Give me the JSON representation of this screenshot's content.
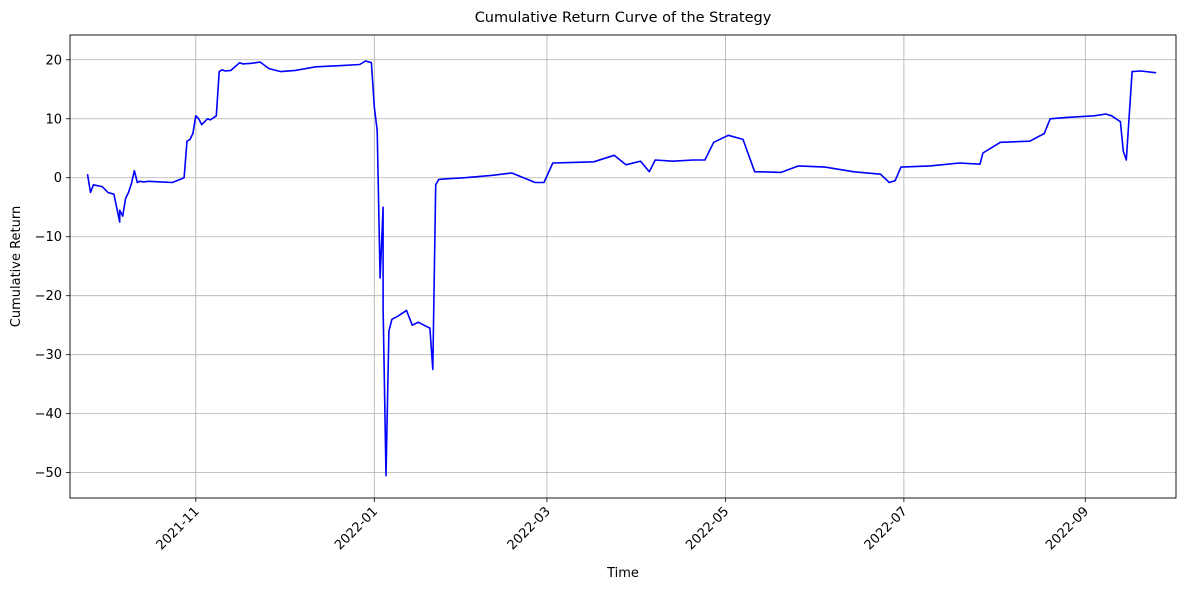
{
  "chart_data": {
    "type": "line",
    "title": "Cumulative Return Curve of the Strategy",
    "xlabel": "Time",
    "ylabel": "Cumulative Return",
    "grid": true,
    "x_tick_labels": [
      "2021-11",
      "2022-01",
      "2022-03",
      "2022-05",
      "2022-07",
      "2022-09"
    ],
    "x_tick_dates": [
      "2021-11-01",
      "2022-01-01",
      "2022-03-01",
      "2022-05-01",
      "2022-07-01",
      "2022-09-01"
    ],
    "y_tick_labels": [
      "20",
      "10",
      "0",
      "−10",
      "−20",
      "−30",
      "−40",
      "−50"
    ],
    "y_tick_values": [
      20,
      10,
      0,
      -10,
      -20,
      -30,
      -40,
      -50
    ],
    "xlim": [
      "2021-09-19",
      "2022-10-02"
    ],
    "ylim": [
      -54.3,
      24.2
    ],
    "series_color": "#0000ff",
    "series": [
      {
        "x": [
          "2021-09-25",
          "2021-09-26",
          "2021-09-27",
          "2021-09-30",
          "2021-10-02",
          "2021-10-04",
          "2021-10-06",
          "2021-10-06",
          "2021-10-07",
          "2021-10-08",
          "2021-10-09",
          "2021-10-10",
          "2021-10-11",
          "2021-10-12",
          "2021-10-13",
          "2021-10-14",
          "2021-10-16",
          "2021-10-20",
          "2021-10-24",
          "2021-10-28",
          "2021-10-29",
          "2021-10-30",
          "2021-10-31",
          "2021-11-01",
          "2021-11-02",
          "2021-11-03",
          "2021-11-04",
          "2021-11-05",
          "2021-11-06",
          "2021-11-08",
          "2021-11-09",
          "2021-11-10",
          "2021-11-11",
          "2021-11-13",
          "2021-11-16",
          "2021-11-17",
          "2021-11-20",
          "2021-11-23",
          "2021-11-26",
          "2021-11-30",
          "2021-12-05",
          "2021-12-12",
          "2021-12-20",
          "2021-12-27",
          "2021-12-29",
          "2021-12-31",
          "2022-01-01",
          "2022-01-02",
          "2022-01-03",
          "2022-01-04",
          "2022-01-04",
          "2022-01-05",
          "2022-01-06",
          "2022-01-07",
          "2022-01-09",
          "2022-01-12",
          "2022-01-14",
          "2022-01-16",
          "2022-01-18",
          "2022-01-20",
          "2022-01-21",
          "2022-01-22",
          "2022-01-23",
          "2022-01-25",
          "2022-02-01",
          "2022-02-10",
          "2022-02-17",
          "2022-02-25",
          "2022-02-28",
          "2022-03-03",
          "2022-03-10",
          "2022-03-17",
          "2022-03-24",
          "2022-03-28",
          "2022-04-02",
          "2022-04-05",
          "2022-04-07",
          "2022-04-13",
          "2022-04-20",
          "2022-04-24",
          "2022-04-27",
          "2022-05-02",
          "2022-05-07",
          "2022-05-11",
          "2022-05-13",
          "2022-05-20",
          "2022-05-26",
          "2022-06-04",
          "2022-06-14",
          "2022-06-23",
          "2022-06-26",
          "2022-06-28",
          "2022-06-30",
          "2022-07-10",
          "2022-07-20",
          "2022-07-27",
          "2022-07-28",
          "2022-08-03",
          "2022-08-13",
          "2022-08-18",
          "2022-08-20",
          "2022-08-25",
          "2022-09-04",
          "2022-09-08",
          "2022-09-10",
          "2022-09-13",
          "2022-09-14",
          "2022-09-15",
          "2022-09-17",
          "2022-09-20",
          "2022-09-25"
        ],
        "y": [
          0.5,
          -2.5,
          -1.2,
          -1.5,
          -2.5,
          -2.8,
          -7.5,
          -5.5,
          -6.5,
          -3.5,
          -2.5,
          -1.0,
          1.2,
          -0.8,
          -0.6,
          -0.7,
          -0.6,
          -0.7,
          -0.8,
          0.0,
          6.2,
          6.5,
          7.5,
          10.5,
          10.0,
          9.0,
          9.5,
          10.0,
          9.8,
          10.5,
          18.0,
          18.3,
          18.1,
          18.2,
          19.5,
          19.3,
          19.4,
          19.6,
          18.5,
          18.0,
          18.2,
          18.8,
          19.0,
          19.2,
          19.8,
          19.5,
          12.0,
          8.0,
          -17.0,
          -5.0,
          -22.0,
          -50.5,
          -26.0,
          -24.0,
          -23.5,
          -22.5,
          -25.0,
          -24.5,
          -25.0,
          -25.5,
          -32.5,
          -1.2,
          -0.3,
          -0.2,
          0.0,
          0.4,
          0.8,
          -0.8,
          -0.8,
          2.5,
          2.6,
          2.7,
          3.8,
          2.2,
          2.8,
          1.0,
          3.0,
          2.8,
          3.0,
          3.0,
          6.0,
          7.2,
          6.5,
          1.0,
          1.0,
          0.9,
          2.0,
          1.8,
          1.0,
          0.6,
          -0.8,
          -0.5,
          1.8,
          2.0,
          2.5,
          2.3,
          4.2,
          6.0,
          6.2,
          7.5,
          10.0,
          10.2,
          10.5,
          10.8,
          10.5,
          9.5,
          4.5,
          3.0,
          18.0,
          18.1,
          17.8
        ]
      }
    ]
  }
}
